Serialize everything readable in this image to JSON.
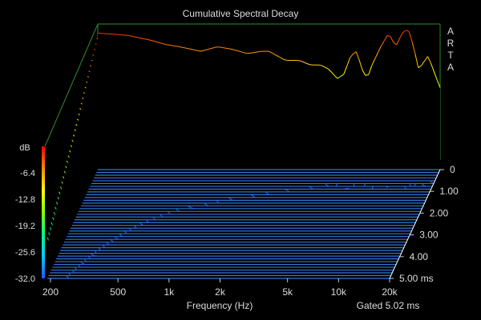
{
  "chart_data": {
    "type": "waterfall-3d",
    "title": "Cumulative Spectral Decay",
    "brand_letters": [
      "A",
      "R",
      "T",
      "A"
    ],
    "xlabel": "Frequency (Hz)",
    "x_scale": "log",
    "x_range": [
      200,
      20000
    ],
    "x_ticks": [
      {
        "v": 200,
        "label": "200"
      },
      {
        "v": 500,
        "label": "500"
      },
      {
        "v": 1000,
        "label": "1k"
      },
      {
        "v": 2000,
        "label": "2k"
      },
      {
        "v": 5000,
        "label": "5k"
      },
      {
        "v": 10000,
        "label": "10k"
      },
      {
        "v": 20000,
        "label": "20k"
      }
    ],
    "z_label_unit": "dB",
    "z_range": [
      -32.0,
      0.0
    ],
    "z_ticks": [
      "-6.4",
      "-12.8",
      "-19.2",
      "-25.6",
      "-32.0"
    ],
    "time_ticks": [
      "0",
      "1.00",
      "2.00",
      "3.00",
      "4.00",
      "5.00 ms"
    ],
    "time_range_ms": [
      0,
      5.02
    ],
    "gate_label": "Gated 5.02 ms",
    "slice_count": 40,
    "response_0ms": {
      "freq": [
        200,
        300,
        400,
        500,
        600,
        800,
        1000,
        1200,
        1500,
        1800,
        2000,
        2500,
        3000,
        3500,
        4000,
        4500,
        5000,
        5500,
        6000,
        6500,
        7000,
        7500,
        8000,
        9000,
        10000,
        11000,
        12000,
        13000,
        14000,
        15000,
        17000,
        20000
      ],
      "db": [
        -2,
        -2.5,
        -3.5,
        -4.5,
        -5,
        -6,
        -5,
        -5.5,
        -6.5,
        -6,
        -6,
        -8,
        -8,
        -9,
        -9,
        -10,
        -12,
        -11,
        -7,
        -6,
        -10,
        -12,
        -9,
        -5,
        -2,
        -5,
        -2,
        -1,
        -5,
        -10,
        -7,
        -14
      ]
    },
    "colors": {
      "background": "#000000",
      "floor": "#3377dd",
      "frame": "#2e8b2e",
      "text": "#dcdcdc"
    },
    "colormap": [
      "#2255ff",
      "#00ccff",
      "#00ff88",
      "#88ff00",
      "#ffff00",
      "#ff8800",
      "#ff0000"
    ]
  }
}
